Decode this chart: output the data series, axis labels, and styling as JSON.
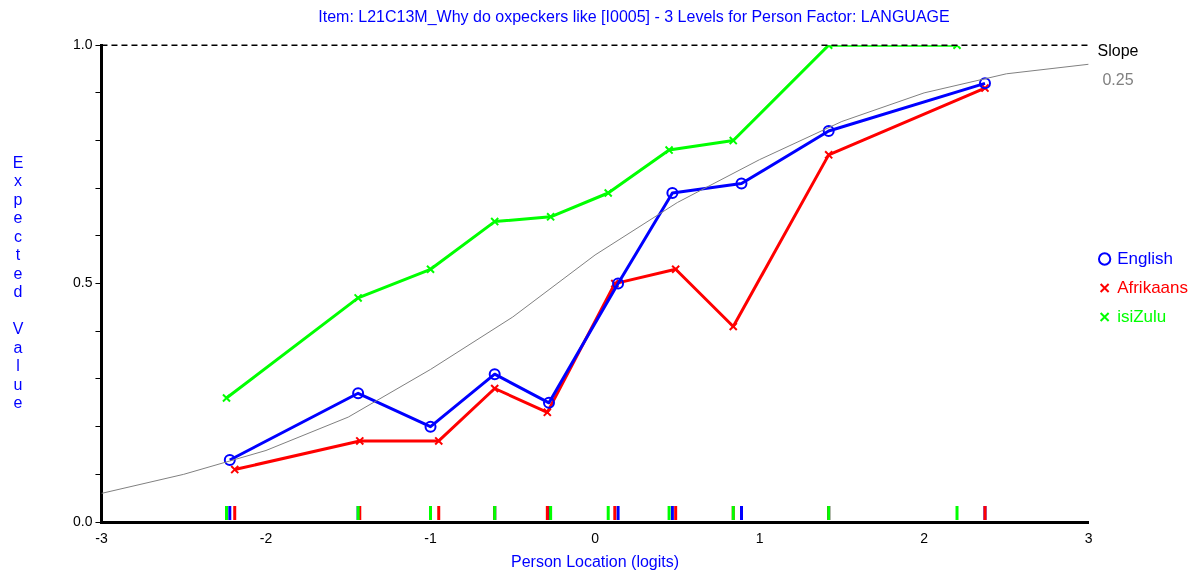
{
  "chart_data": {
    "type": "line",
    "title": "Item: L21C13M_Why do oxpeckers like [I0005] - 3 Levels for Person Factor: LANGUAGE",
    "xlabel": "Person Location (logits)",
    "ylabel": "Expected Value",
    "xlim": [
      -3,
      3
    ],
    "xticks": [
      -3,
      -2,
      -1,
      0,
      1,
      2,
      3
    ],
    "ylim": [
      0,
      1
    ],
    "yticks": [
      {
        "value": 0,
        "label": "0.0"
      },
      {
        "value": 0.1,
        "label": null
      },
      {
        "value": 0.2,
        "label": null
      },
      {
        "value": 0.3,
        "label": null
      },
      {
        "value": 0.4,
        "label": null
      },
      {
        "value": 0.5,
        "label": "0.5"
      },
      {
        "value": 0.6,
        "label": null
      },
      {
        "value": 0.7,
        "label": null
      },
      {
        "value": 0.8,
        "label": null
      },
      {
        "value": 0.9,
        "label": null
      },
      {
        "value": 1,
        "label": "1.0"
      }
    ],
    "grid": false,
    "legend": "right",
    "line_style": "solid",
    "ref_lines": [
      {
        "axis": "y",
        "value": 1,
        "color": "#000000",
        "line_style": "dashed"
      }
    ],
    "annotations": [
      "Slope",
      "0.25"
    ],
    "series": [
      {
        "type": "line",
        "color": "#808080",
        "marker": "none",
        "x": [
          -3,
          -2.5,
          -2,
          -1.5,
          -1,
          -0.5,
          0,
          0.5,
          1,
          1.5,
          2,
          2.5,
          3
        ],
        "values": [
          0.06,
          0.1,
          0.15,
          0.22,
          0.32,
          0.43,
          0.56,
          0.67,
          0.76,
          0.84,
          0.9,
          0.94,
          0.96
        ]
      },
      {
        "name": "English",
        "color": "#0000ff",
        "marker": "circle",
        "x": [
          -2.22,
          -1.44,
          -1.0,
          -0.61,
          -0.28,
          0.14,
          0.47,
          0.89,
          1.42,
          2.37
        ],
        "values": [
          0.13,
          0.27,
          0.2,
          0.31,
          0.25,
          0.5,
          0.69,
          0.71,
          0.82,
          0.92
        ]
      },
      {
        "name": "Afrikaans",
        "color": "#ff0000",
        "marker": "cross",
        "x": [
          -2.19,
          -1.43,
          -0.95,
          -0.61,
          -0.29,
          0.12,
          0.49,
          0.84,
          1.42,
          2.37
        ],
        "values": [
          0.11,
          0.17,
          0.17,
          0.28,
          0.23,
          0.5,
          0.53,
          0.41,
          0.77,
          0.91
        ]
      },
      {
        "name": "isiZulu",
        "color": "#00ff00",
        "marker": "cross",
        "x": [
          -2.24,
          -1.44,
          -1.0,
          -0.61,
          -0.27,
          0.08,
          0.45,
          0.84,
          1.42,
          2.2
        ],
        "values": [
          0.26,
          0.47,
          0.53,
          0.63,
          0.64,
          0.69,
          0.78,
          0.8,
          1.0,
          1.0
        ]
      }
    ]
  }
}
